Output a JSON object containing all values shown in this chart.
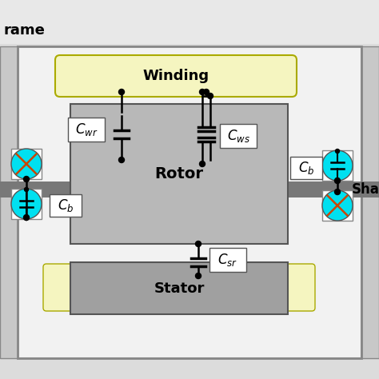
{
  "bg_outer": "#dcdcdc",
  "bg_inner": "#f0f0f0",
  "rotor_color": "#b8b8b8",
  "stator_color": "#a0a0a0",
  "winding_color": "#f5f5c0",
  "shaft_color": "#787878",
  "dark_shaft": "#606060",
  "cyan_color": "#00e0f0",
  "black": "#000000",
  "white": "#ffffff",
  "frame_gray": "#c8c8c8",
  "dark_gray": "#686868",
  "label_frame": "rame",
  "label_winding": "Winding",
  "label_rotor": "Rotor",
  "label_stator": "Stator",
  "label_shaft": "Sha"
}
